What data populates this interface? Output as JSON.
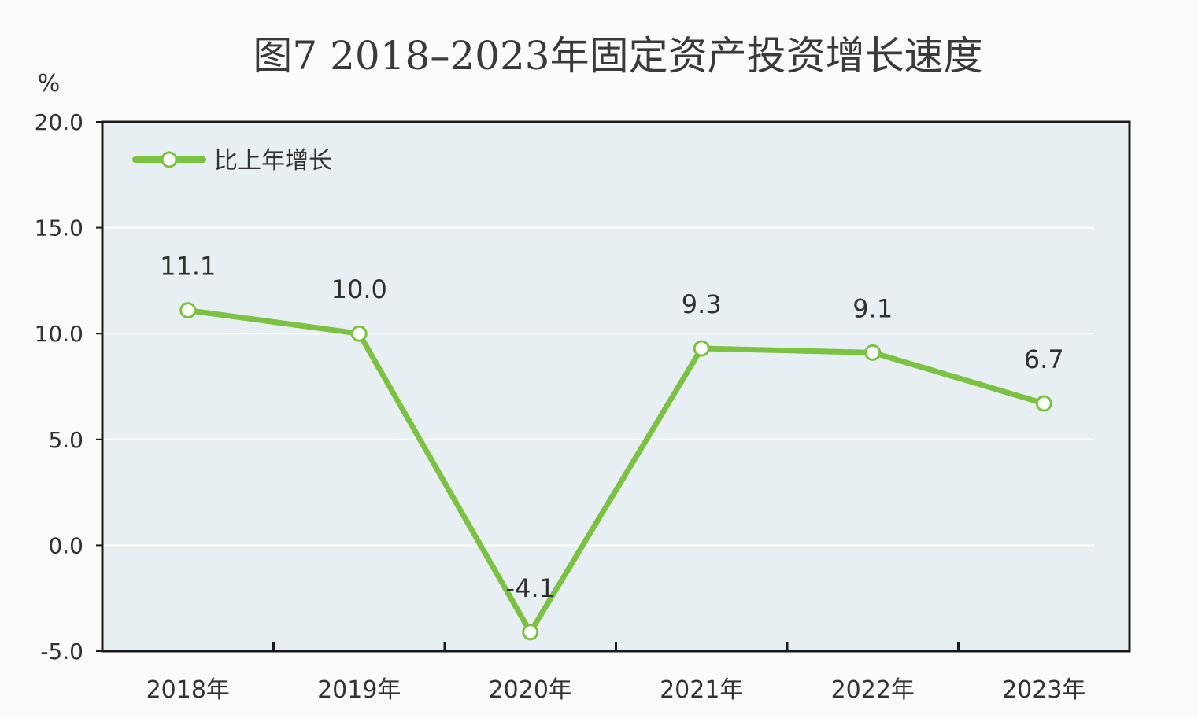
{
  "chart_data": {
    "type": "line",
    "title": "图7 2018–2023年固定资产投资增长速度",
    "unit": "%",
    "categories": [
      "2018年",
      "2019年",
      "2020年",
      "2021年",
      "2022年",
      "2023年"
    ],
    "series": [
      {
        "name": "比上年增长",
        "values": [
          11.1,
          10.0,
          -4.1,
          9.3,
          9.1,
          6.7
        ]
      }
    ],
    "data_labels": [
      "11.1",
      "10.0",
      "-4.1",
      "9.3",
      "9.1",
      "6.7"
    ],
    "ylim": [
      -5.0,
      20.0
    ],
    "yticks": [
      "20.0",
      "15.0",
      "10.0",
      "5.0",
      "0.0",
      "-5.0"
    ],
    "grid": true,
    "legend_position": "top-left",
    "colors": {
      "line": "#7cc242",
      "marker_fill": "#ffffff",
      "plot_bg": "#e8eff3",
      "frame": "#1a1a1a",
      "grid": "#ffffff"
    }
  }
}
